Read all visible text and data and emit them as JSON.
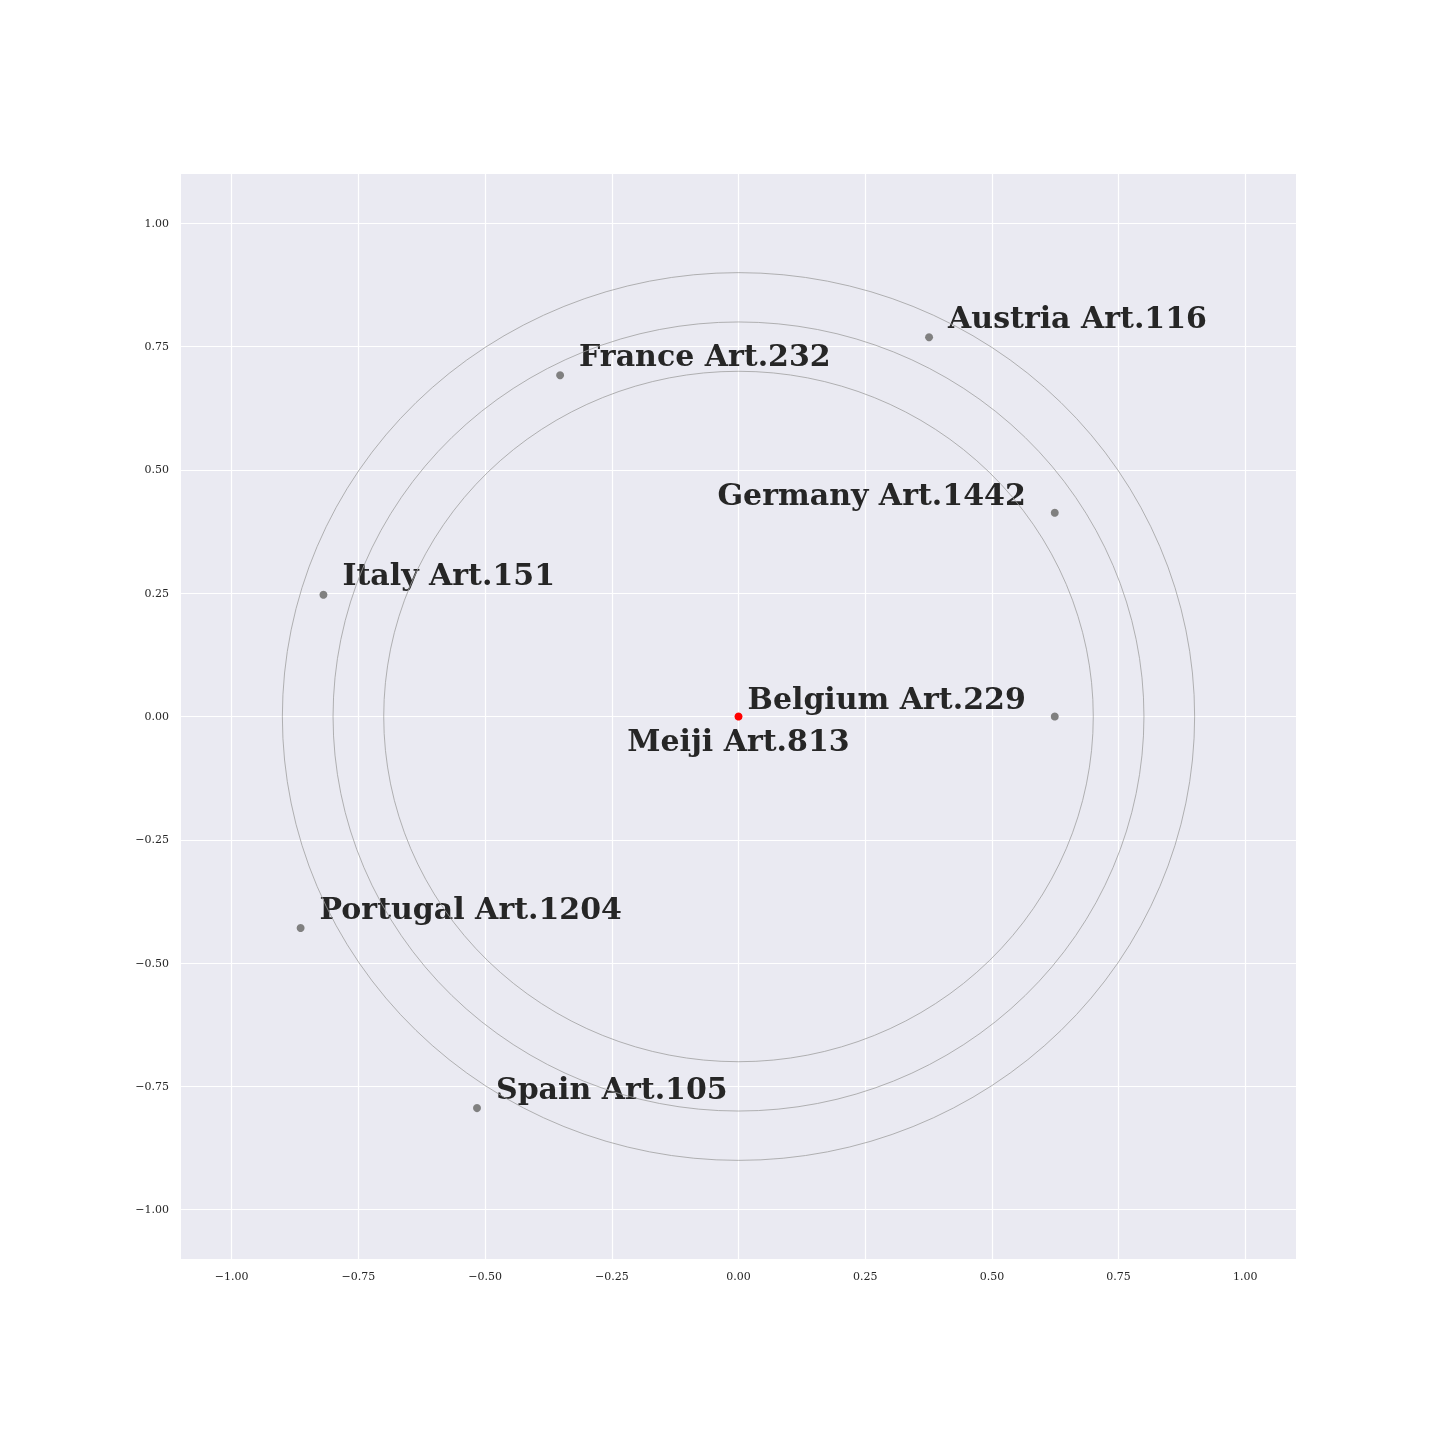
{
  "chart_data": {
    "type": "scatter",
    "marker": "circle",
    "grid": true,
    "xlim": [
      -1.1,
      1.1
    ],
    "ylim": [
      -1.1,
      1.1
    ],
    "xticks": [
      {
        "value": -1,
        "label": "−1.00"
      },
      {
        "value": -0.75,
        "label": "−0.75"
      },
      {
        "value": -0.5,
        "label": "−0.50"
      },
      {
        "value": -0.25,
        "label": "−0.25"
      },
      {
        "value": 0,
        "label": "0.00"
      },
      {
        "value": 0.25,
        "label": "0.25"
      },
      {
        "value": 0.5,
        "label": "0.50"
      },
      {
        "value": 0.75,
        "label": "0.75"
      },
      {
        "value": 1,
        "label": "1.00"
      }
    ],
    "yticks": [
      {
        "value": -1,
        "label": "−1.00"
      },
      {
        "value": -0.75,
        "label": "−0.75"
      },
      {
        "value": -0.5,
        "label": "−0.50"
      },
      {
        "value": -0.25,
        "label": "−0.25"
      },
      {
        "value": 0,
        "label": "0.00"
      },
      {
        "value": 0.25,
        "label": "0.25"
      },
      {
        "value": 0.5,
        "label": "0.50"
      },
      {
        "value": 0.75,
        "label": "0.75"
      },
      {
        "value": 1,
        "label": "1.00"
      }
    ],
    "series": [
      {
        "x": [
          0,
          0.624,
          0.624,
          0.376,
          -0.352,
          -0.819,
          -0.864,
          -0.516
        ],
        "values": [
          0,
          0,
          0.413,
          0.769,
          0.692,
          0.247,
          -0.429,
          -0.794
        ],
        "colors": [
          "#ff0000",
          "#808080",
          "#808080",
          "#808080",
          "#808080",
          "#808080",
          "#808080",
          "#808080"
        ],
        "value_labels": [
          "Meiji Art.813",
          "Belgium Art.229",
          "Germany Art.1442",
          "Austria Art.116",
          "France Art.232",
          "Italy Art.151",
          "Portugal Art.1204",
          "Spain Art.105"
        ]
      }
    ]
  }
}
